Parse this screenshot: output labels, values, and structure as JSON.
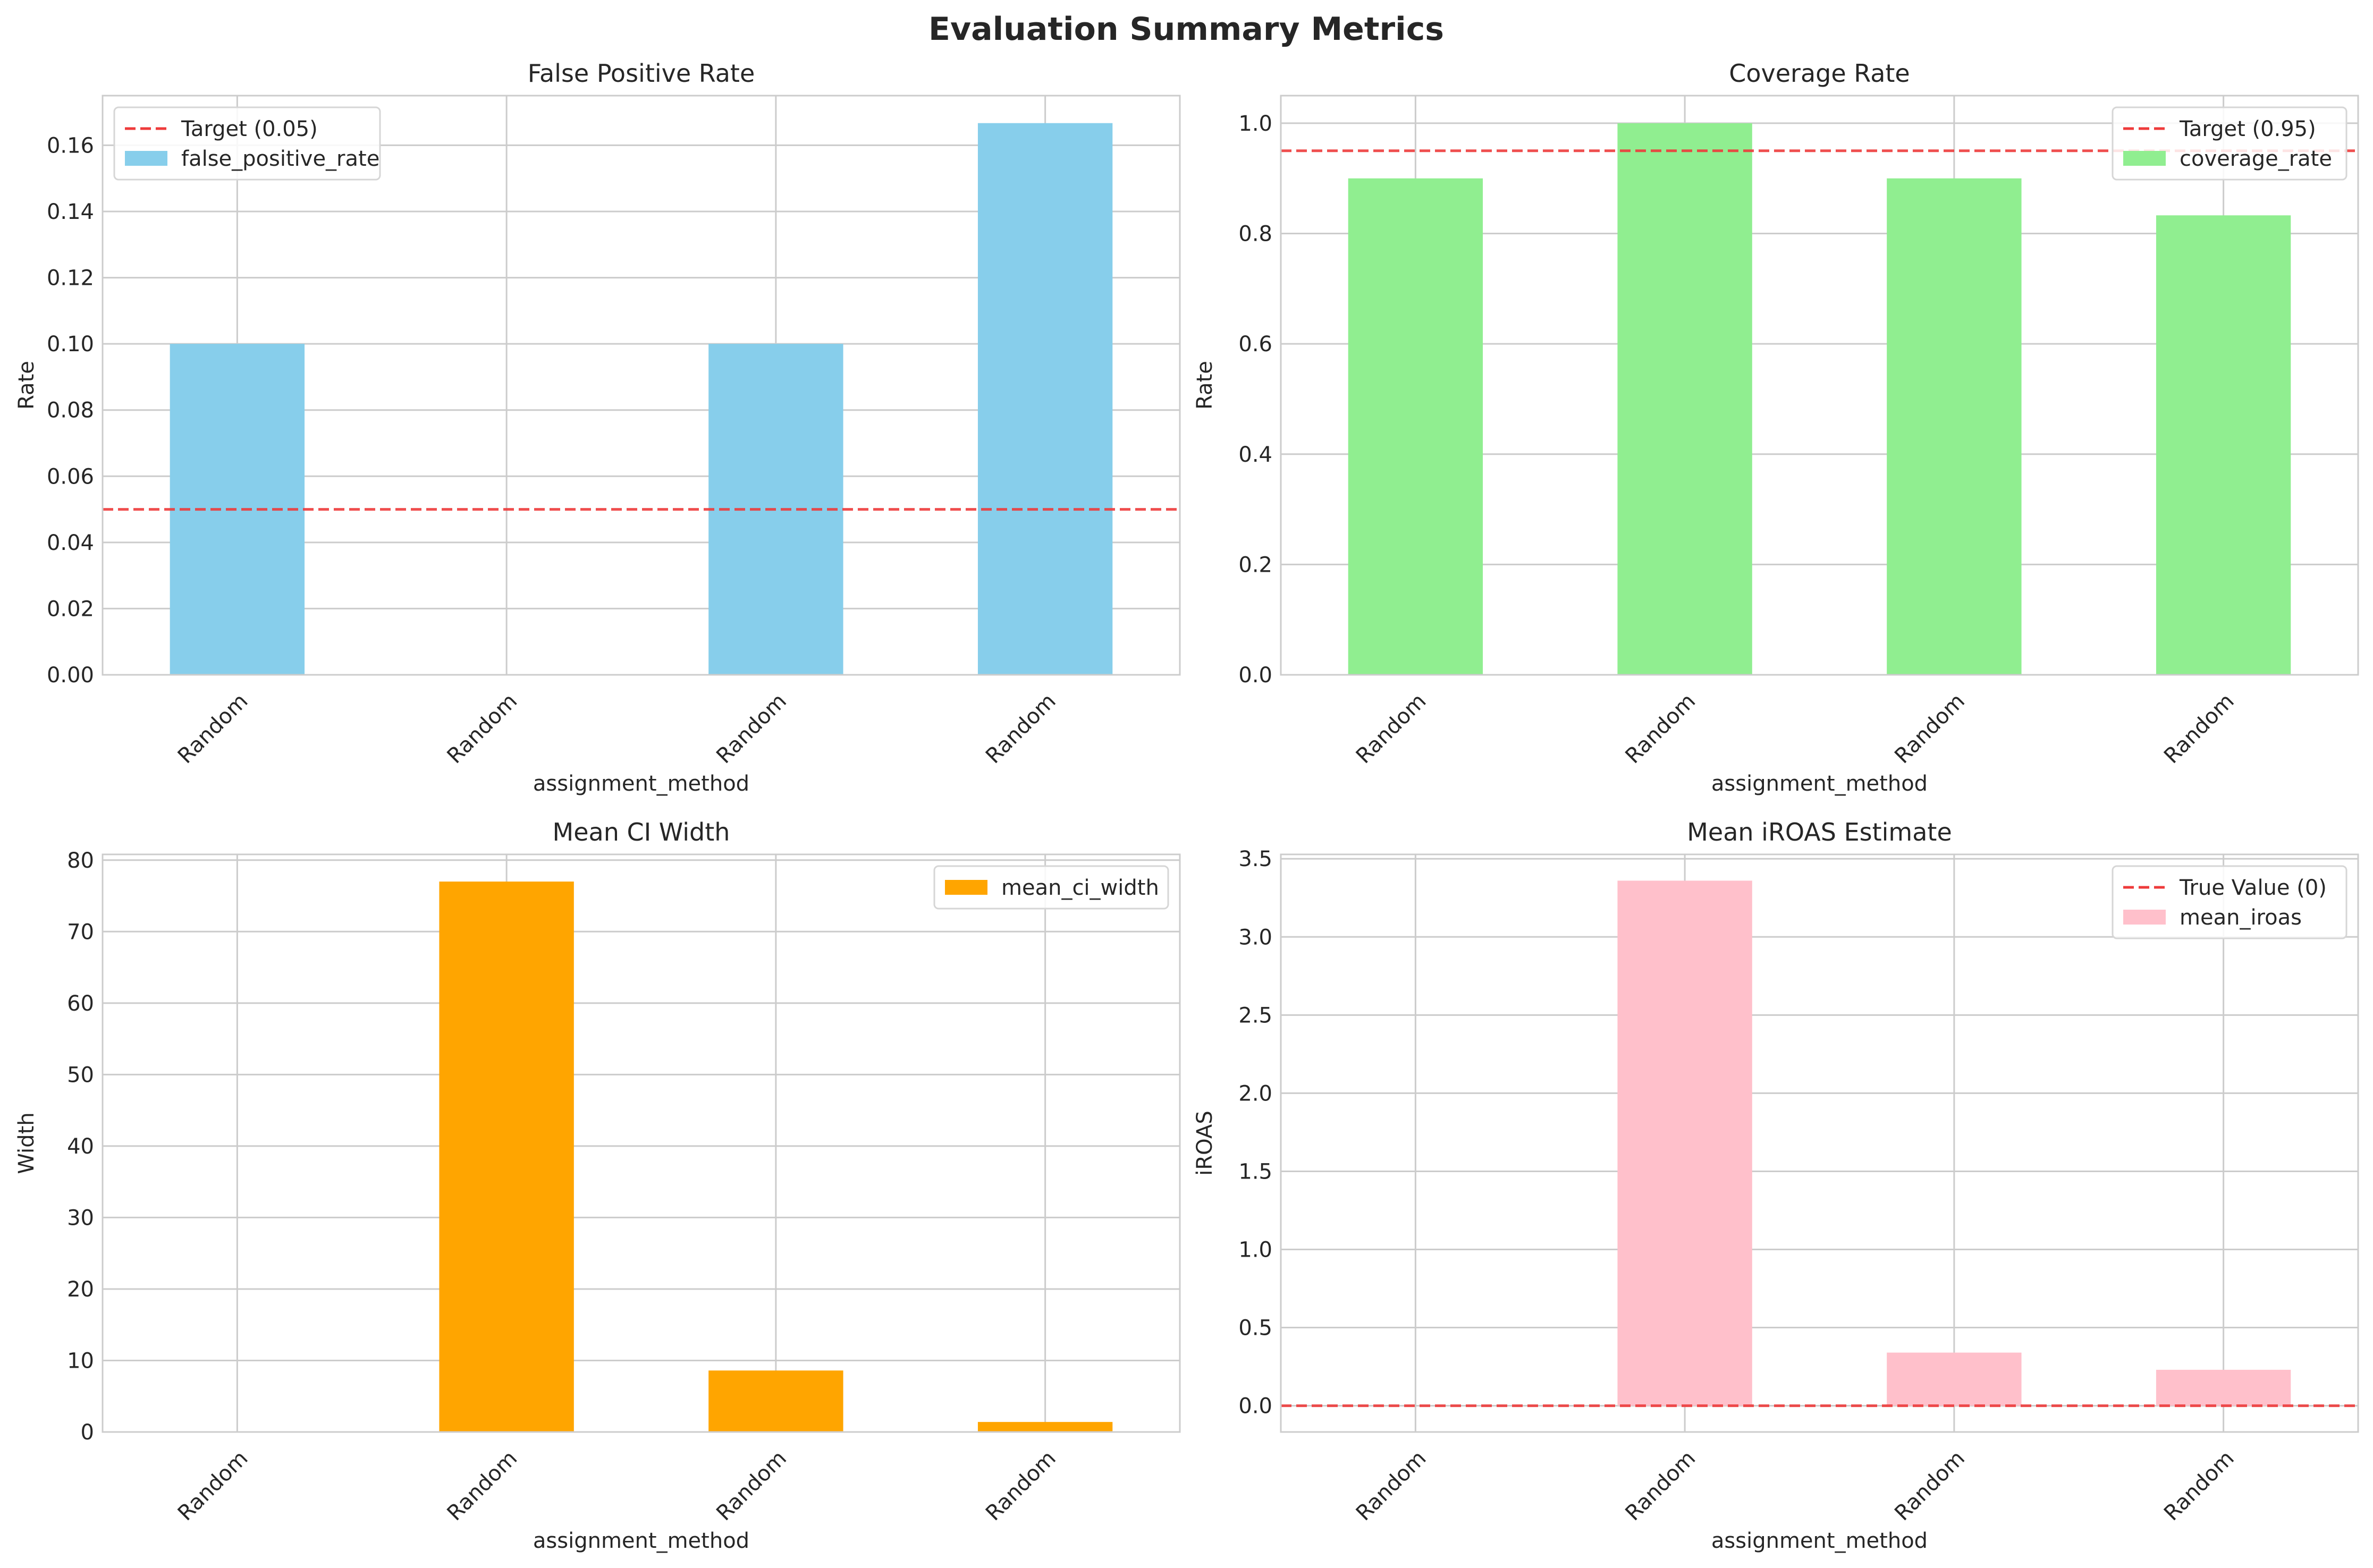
{
  "figure_title": "Evaluation Summary Metrics",
  "colors": {
    "target_line": "#ee3b3b",
    "grid": "#cccccc",
    "axes_edge": "#cccccc",
    "text": "#262626"
  },
  "chart_data": [
    {
      "id": "fpr",
      "type": "bar",
      "title": "False Positive Rate",
      "xlabel": "assignment_method",
      "ylabel": "Rate",
      "categories": [
        "Random",
        "Random",
        "Random",
        "Random"
      ],
      "series": [
        {
          "name": "false_positive_rate",
          "values": [
            0.1,
            0.0,
            0.1,
            0.1667
          ],
          "color": "#87ceeb"
        }
      ],
      "ylim": [
        0,
        0.175
      ],
      "yticks": [
        0.0,
        0.02,
        0.04,
        0.06,
        0.08,
        0.1,
        0.12,
        0.14,
        0.16
      ],
      "ytick_labels": [
        "0.00",
        "0.02",
        "0.04",
        "0.06",
        "0.08",
        "0.10",
        "0.12",
        "0.14",
        "0.16"
      ],
      "hline": {
        "value": 0.05,
        "label": "Target (0.05)"
      },
      "legend": {
        "position": "top-left",
        "entries": [
          "Target (0.05)",
          "false_positive_rate"
        ]
      },
      "grid": true
    },
    {
      "id": "coverage",
      "type": "bar",
      "title": "Coverage Rate",
      "xlabel": "assignment_method",
      "ylabel": "Rate",
      "categories": [
        "Random",
        "Random",
        "Random",
        "Random"
      ],
      "series": [
        {
          "name": "coverage_rate",
          "values": [
            0.9,
            1.0,
            0.9,
            0.833
          ],
          "color": "#90ee90"
        }
      ],
      "ylim": [
        0,
        1.05
      ],
      "yticks": [
        0.0,
        0.2,
        0.4,
        0.6,
        0.8,
        1.0
      ],
      "ytick_labels": [
        "0.0",
        "0.2",
        "0.4",
        "0.6",
        "0.8",
        "1.0"
      ],
      "hline": {
        "value": 0.95,
        "label": "Target (0.95)"
      },
      "legend": {
        "position": "top-right",
        "entries": [
          "Target (0.95)",
          "coverage_rate"
        ]
      },
      "grid": true
    },
    {
      "id": "ciwidth",
      "type": "bar",
      "title": "Mean CI Width",
      "xlabel": "assignment_method",
      "ylabel": "Width",
      "categories": [
        "Random",
        "Random",
        "Random",
        "Random"
      ],
      "series": [
        {
          "name": "mean_ci_width",
          "values": [
            0.0,
            77.0,
            8.6,
            1.4
          ],
          "color": "#ffa500"
        }
      ],
      "ylim": [
        0,
        80.8
      ],
      "yticks": [
        0,
        10,
        20,
        30,
        40,
        50,
        60,
        70,
        80
      ],
      "ytick_labels": [
        "0",
        "10",
        "20",
        "30",
        "40",
        "50",
        "60",
        "70",
        "80"
      ],
      "hline": null,
      "legend": {
        "position": "top-right",
        "entries": [
          "mean_ci_width"
        ]
      },
      "grid": true
    },
    {
      "id": "iroas",
      "type": "bar",
      "title": "Mean iROAS Estimate",
      "xlabel": "assignment_method",
      "ylabel": "iROAS",
      "categories": [
        "Random",
        "Random",
        "Random",
        "Random"
      ],
      "series": [
        {
          "name": "mean_iroas",
          "values": [
            0.0,
            3.36,
            0.34,
            0.23
          ],
          "color": "#ffc0cb"
        }
      ],
      "ylim": [
        -0.168,
        3.528
      ],
      "yticks": [
        0.0,
        0.5,
        1.0,
        1.5,
        2.0,
        2.5,
        3.0,
        3.5
      ],
      "ytick_labels": [
        "0.0",
        "0.5",
        "1.0",
        "1.5",
        "2.0",
        "2.5",
        "3.0",
        "3.5"
      ],
      "hline": {
        "value": 0.0,
        "label": "True Value (0)"
      },
      "legend": {
        "position": "top-right",
        "entries": [
          "True Value (0)",
          "mean_iroas"
        ]
      },
      "grid": true
    }
  ]
}
